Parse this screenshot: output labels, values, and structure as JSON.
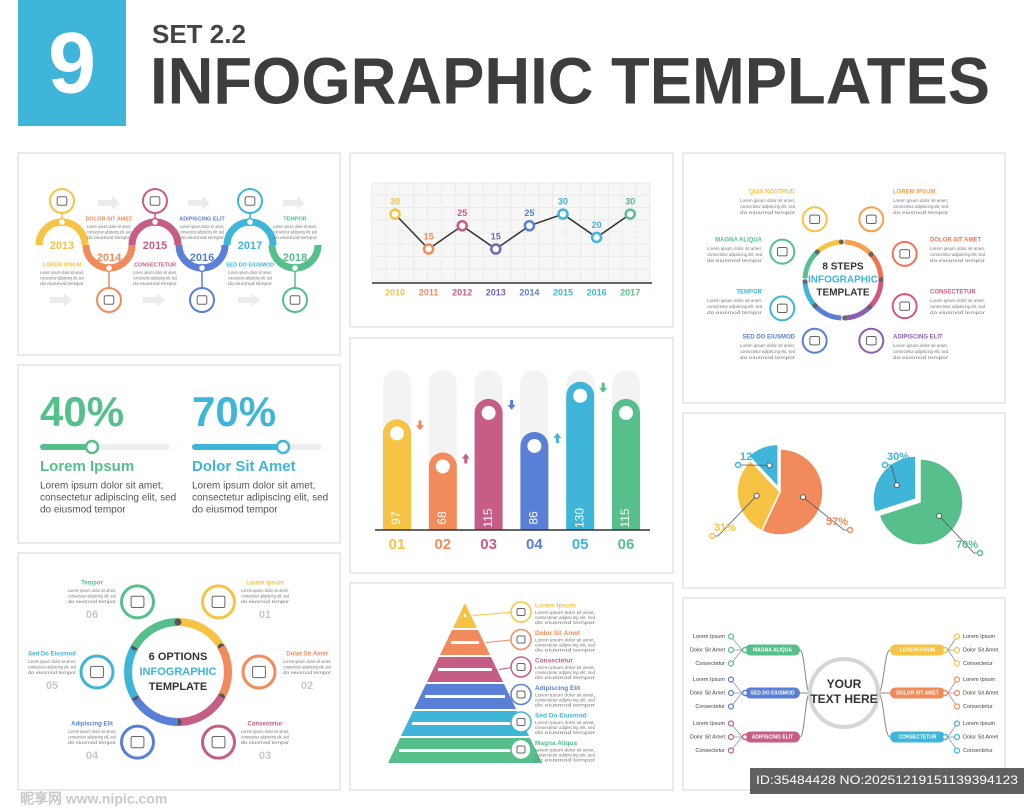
{
  "header": {
    "badge": "9",
    "set": "SET 2.2",
    "title": "INFOGRAPHIC TEMPLATES"
  },
  "lorem": [
    "Lorem ipsum dolor sit amet,",
    "consectetur adipiscing elit, sed",
    "do eiusmod tempor"
  ],
  "timeline": {
    "years": [
      "2013",
      "2014",
      "2015",
      "2016",
      "2017",
      "2018"
    ],
    "labels": [
      "LOREM IPSUM",
      "DOLOR SIT AMET",
      "CONSECTETUR",
      "ADIPISCING ELIT",
      "SED DO EIUSMOD",
      "TEMPOR"
    ],
    "colors": [
      "#f6c344",
      "#f28b5b",
      "#c55d86",
      "#5a7fd6",
      "#3fb5d9",
      "#56bf8b"
    ]
  },
  "line_chart": {
    "type": "line",
    "categories": [
      "2010",
      "2011",
      "2012",
      "2013",
      "2014",
      "2015",
      "2016",
      "2017"
    ],
    "values": [
      30,
      15,
      25,
      15,
      25,
      30,
      20,
      30
    ],
    "colors": [
      "#f6c344",
      "#f28b5b",
      "#c55d86",
      "#7a62b8",
      "#5a7fd6",
      "#3fb5d9",
      "#3fb5d9",
      "#56bf8b"
    ]
  },
  "steps8": {
    "title": [
      "8 STEPS",
      "INFOGRAPHIC",
      "TEMPLATE"
    ],
    "labels": [
      "QUIS NOSTRUD",
      "LOREM IPSUM",
      "MAGNA ALIQUA",
      "DOLOR SIT AMET",
      "TEMPOR",
      "CONSECTETUR",
      "SED DO EIUSMOD",
      "ADIPISCING ELIT"
    ],
    "colors": [
      "#f6c344",
      "#f5a04a",
      "#56bf8b",
      "#f07355",
      "#3fb5d9",
      "#d0587f",
      "#5a7fd6",
      "#8d5fb0"
    ]
  },
  "progress": {
    "values": [
      40,
      70
    ],
    "value_labels": [
      "40%",
      "70%"
    ],
    "titles": [
      "Lorem Ipsum",
      "Dolor Sit Amet"
    ],
    "colors": [
      "#56bf8b",
      "#3fb5d9"
    ]
  },
  "bar_chart": {
    "type": "bar",
    "categories": [
      "01",
      "02",
      "03",
      "04",
      "05",
      "06"
    ],
    "values": [
      97,
      68,
      115,
      86,
      130,
      115
    ],
    "colors": [
      "#f6c344",
      "#f28b5b",
      "#c55d86",
      "#5a7fd6",
      "#3fb5d9",
      "#56bf8b"
    ]
  },
  "pies": [
    {
      "type": "pie",
      "values": [
        12,
        31,
        57
      ],
      "value_labels": [
        "12%",
        "31%",
        "57%"
      ],
      "colors": [
        "#3fb5d9",
        "#f6c344",
        "#f28b5b"
      ]
    },
    {
      "type": "pie",
      "values": [
        30,
        70
      ],
      "value_labels": [
        "30%",
        "70%"
      ],
      "colors": [
        "#3fb5d9",
        "#56bf8b"
      ]
    }
  ],
  "options6": {
    "title": [
      "6 OPTIONS",
      "INFOGRAPHIC",
      "TEMPLATE"
    ],
    "items": [
      {
        "name": "Lorem Ipsum",
        "number": "01"
      },
      {
        "name": "Dolor Sit Amet",
        "number": "02"
      },
      {
        "name": "Consectetur",
        "number": "03"
      },
      {
        "name": "Adipiscing Elit",
        "number": "04"
      },
      {
        "name": "Sed Do Eiusmod",
        "number": "05"
      },
      {
        "name": "Tempor",
        "number": "06"
      }
    ],
    "colors": [
      "#f6c344",
      "#f28b5b",
      "#c55d86",
      "#5a7fd6",
      "#3fb5d9",
      "#56bf8b"
    ]
  },
  "pyramid": {
    "labels": [
      "Lorem Ipsum",
      "Dolor Sit Amet",
      "Consectetur",
      "Adipiscing Elit",
      "Sed Do Eiusmod",
      "Magna Aliqua"
    ],
    "colors": [
      "#f6c344",
      "#f28b5b",
      "#c55d86",
      "#5a7fd6",
      "#3fb5d9",
      "#56bf8b"
    ]
  },
  "mindmap": {
    "center": [
      "YOUR",
      "TEXT HERE"
    ],
    "branches": [
      "MAGNA ALIQUA",
      "SED DO EIUSMOD",
      "ADIPISCING ELIT",
      "LOREM IPSUM",
      "DOLOR SIT AMET",
      "CONSECTETUR"
    ],
    "leaves": [
      "Lorem Ipsum",
      "Dolor Sit Amet",
      "Consectetur"
    ],
    "colors": [
      "#56bf8b",
      "#5a7fd6",
      "#c55d86",
      "#f6c344",
      "#f28b5b",
      "#3fb5d9"
    ]
  },
  "watermark": {
    "logo": "昵享网 www.nipic.com",
    "id": "ID:35484428 NO:20251219151139394123"
  }
}
